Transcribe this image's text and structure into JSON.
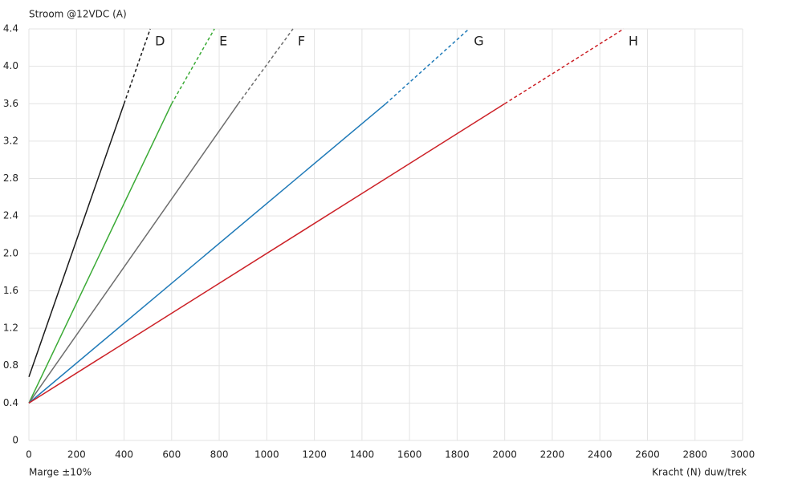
{
  "chart_data": {
    "type": "line",
    "title": "Stroom @12VDC (A)",
    "x_label": "Kracht (N) duw/trek",
    "note": "Marge ±10%",
    "xlim": [
      0,
      3000
    ],
    "xticks": [
      0,
      200,
      400,
      600,
      800,
      1000,
      1200,
      1400,
      1600,
      1800,
      2000,
      2200,
      2400,
      2600,
      2800,
      3000
    ],
    "ylim": [
      0,
      4.4
    ],
    "yticks": [
      0,
      0.4,
      0.8,
      1.2,
      1.6,
      {
        "value": 2,
        "label": "2.0"
      },
      2.4,
      2.8,
      3.2,
      3.6,
      {
        "value": 4,
        "label": "4.0"
      },
      4.4
    ],
    "grid": true,
    "series": [
      {
        "name": "D",
        "color": "#1a1a1a",
        "segments": [
          {
            "style": "solid",
            "x": [
              0,
              400
            ],
            "values": [
              0.68,
              3.6
            ]
          },
          {
            "style": "dashed",
            "x": [
              400,
              510
            ],
            "values": [
              3.6,
              4.4
            ]
          }
        ]
      },
      {
        "name": "E",
        "color": "#3aaa35",
        "segments": [
          {
            "style": "solid",
            "x": [
              0,
              600
            ],
            "values": [
              0.4,
              3.6
            ]
          },
          {
            "style": "dashed",
            "x": [
              600,
              780
            ],
            "values": [
              3.6,
              4.4
            ]
          }
        ]
      },
      {
        "name": "F",
        "color": "#6d6d6d",
        "segments": [
          {
            "style": "solid",
            "x": [
              0,
              880
            ],
            "values": [
              0.4,
              3.6
            ]
          },
          {
            "style": "dashed",
            "x": [
              880,
              1110
            ],
            "values": [
              3.6,
              4.4
            ]
          }
        ]
      },
      {
        "name": "G",
        "color": "#1f7ab8",
        "segments": [
          {
            "style": "solid",
            "x": [
              0,
              1500
            ],
            "values": [
              0.4,
              3.6
            ]
          },
          {
            "style": "dashed",
            "x": [
              1500,
              1850
            ],
            "values": [
              3.6,
              4.4
            ]
          }
        ]
      },
      {
        "name": "H",
        "color": "#cc2127",
        "segments": [
          {
            "style": "solid",
            "x": [
              0,
              2000
            ],
            "values": [
              0.4,
              3.6
            ]
          },
          {
            "style": "dashed",
            "x": [
              2000,
              2500
            ],
            "values": [
              3.6,
              4.4
            ]
          }
        ]
      }
    ]
  }
}
